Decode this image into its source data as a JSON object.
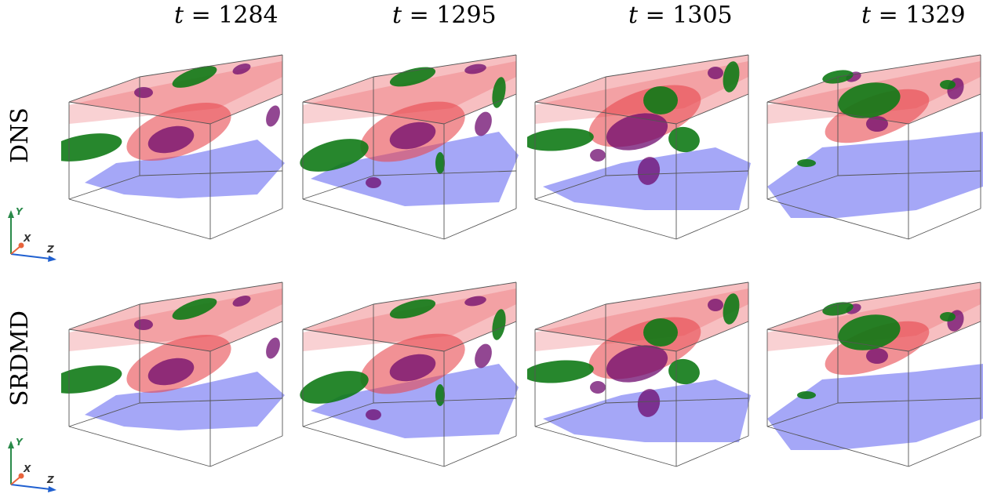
{
  "columns": [
    {
      "label": "t = 1284",
      "var": "t",
      "value": "1284"
    },
    {
      "label": "t = 1295",
      "var": "t",
      "value": "1295"
    },
    {
      "label": "t = 1305",
      "var": "t",
      "value": "1305"
    },
    {
      "label": "t = 1329",
      "var": "t",
      "value": "1329"
    }
  ],
  "rows": [
    {
      "label": "DNS"
    },
    {
      "label": "SRDMD"
    }
  ],
  "axes_triad": {
    "y": "Y",
    "x": "X",
    "z": "Z"
  },
  "colors": {
    "red_surface": "#e8474e",
    "blue_surface": "#5b5ff0",
    "green_surface": "#0f7a16",
    "purple_surface": "#6e0a6e",
    "axis_y": "#2a8a4a",
    "axis_x": "#e8643c",
    "axis_z": "#2060d0"
  }
}
